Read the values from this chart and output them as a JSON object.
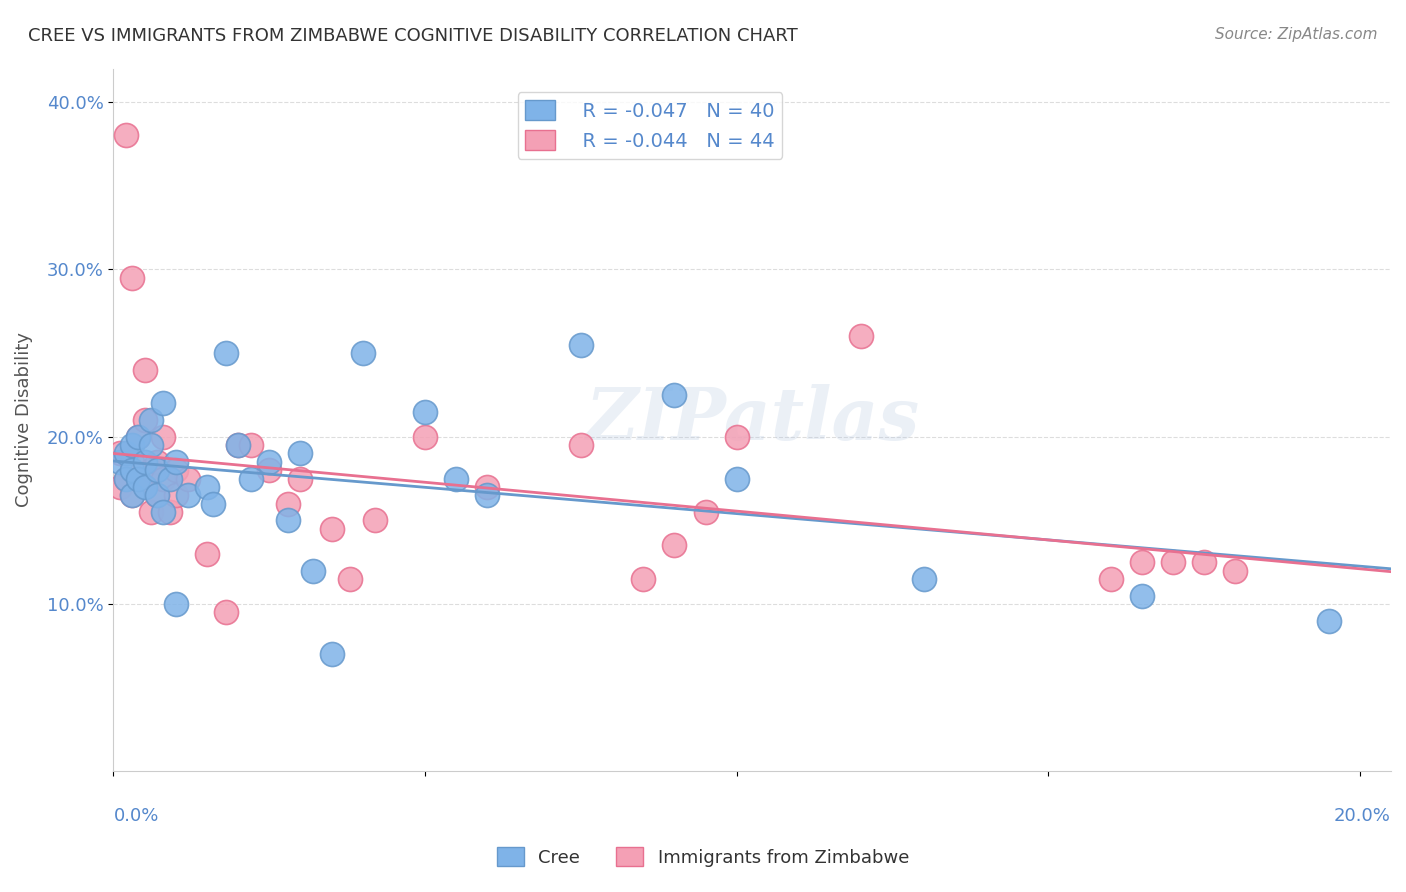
{
  "title": "CREE VS IMMIGRANTS FROM ZIMBABWE COGNITIVE DISABILITY CORRELATION CHART",
  "source": "Source: ZipAtlas.com",
  "ylabel": "Cognitive Disability",
  "ylim": [
    0.0,
    0.42
  ],
  "xlim": [
    0.0,
    0.205
  ],
  "yticks": [
    0.1,
    0.2,
    0.3,
    0.4
  ],
  "ytick_labels": [
    "10.0%",
    "20.0%",
    "30.0%",
    "40.0%"
  ],
  "xticks": [
    0.0,
    0.05,
    0.1,
    0.15,
    0.2
  ],
  "background_color": "#ffffff",
  "grid_color": "#dddddd",
  "blue_color": "#7fb3e8",
  "pink_color": "#f4a0b5",
  "blue_line_color": "#6699cc",
  "pink_line_color": "#e87090",
  "axis_label_color": "#5588cc",
  "title_color": "#333333",
  "legend_R1": "R = -0.047",
  "legend_N1": "N = 40",
  "legend_R2": "R = -0.044",
  "legend_N2": "N = 44",
  "watermark": "ZIPatlas",
  "cree_x": [
    0.001,
    0.002,
    0.002,
    0.003,
    0.003,
    0.003,
    0.004,
    0.004,
    0.005,
    0.005,
    0.006,
    0.006,
    0.007,
    0.007,
    0.008,
    0.008,
    0.009,
    0.01,
    0.01,
    0.012,
    0.015,
    0.016,
    0.018,
    0.02,
    0.022,
    0.025,
    0.028,
    0.03,
    0.032,
    0.035,
    0.04,
    0.05,
    0.055,
    0.06,
    0.075,
    0.09,
    0.1,
    0.13,
    0.165,
    0.195
  ],
  "cree_y": [
    0.185,
    0.19,
    0.175,
    0.18,
    0.195,
    0.165,
    0.175,
    0.2,
    0.185,
    0.17,
    0.21,
    0.195,
    0.18,
    0.165,
    0.22,
    0.155,
    0.175,
    0.185,
    0.1,
    0.165,
    0.17,
    0.16,
    0.25,
    0.195,
    0.175,
    0.185,
    0.15,
    0.19,
    0.12,
    0.07,
    0.25,
    0.215,
    0.175,
    0.165,
    0.255,
    0.225,
    0.175,
    0.115,
    0.105,
    0.09
  ],
  "zimb_x": [
    0.001,
    0.001,
    0.002,
    0.002,
    0.003,
    0.003,
    0.003,
    0.004,
    0.004,
    0.005,
    0.005,
    0.006,
    0.006,
    0.007,
    0.007,
    0.008,
    0.008,
    0.009,
    0.01,
    0.01,
    0.012,
    0.015,
    0.018,
    0.02,
    0.022,
    0.025,
    0.028,
    0.03,
    0.035,
    0.038,
    0.042,
    0.05,
    0.06,
    0.075,
    0.085,
    0.09,
    0.095,
    0.1,
    0.12,
    0.16,
    0.165,
    0.17,
    0.175,
    0.18
  ],
  "zimb_y": [
    0.19,
    0.17,
    0.38,
    0.175,
    0.295,
    0.185,
    0.165,
    0.2,
    0.175,
    0.24,
    0.21,
    0.18,
    0.155,
    0.185,
    0.165,
    0.2,
    0.175,
    0.155,
    0.18,
    0.165,
    0.175,
    0.13,
    0.095,
    0.195,
    0.195,
    0.18,
    0.16,
    0.175,
    0.145,
    0.115,
    0.15,
    0.2,
    0.17,
    0.195,
    0.115,
    0.135,
    0.155,
    0.2,
    0.26,
    0.115,
    0.125,
    0.125,
    0.125,
    0.12
  ]
}
